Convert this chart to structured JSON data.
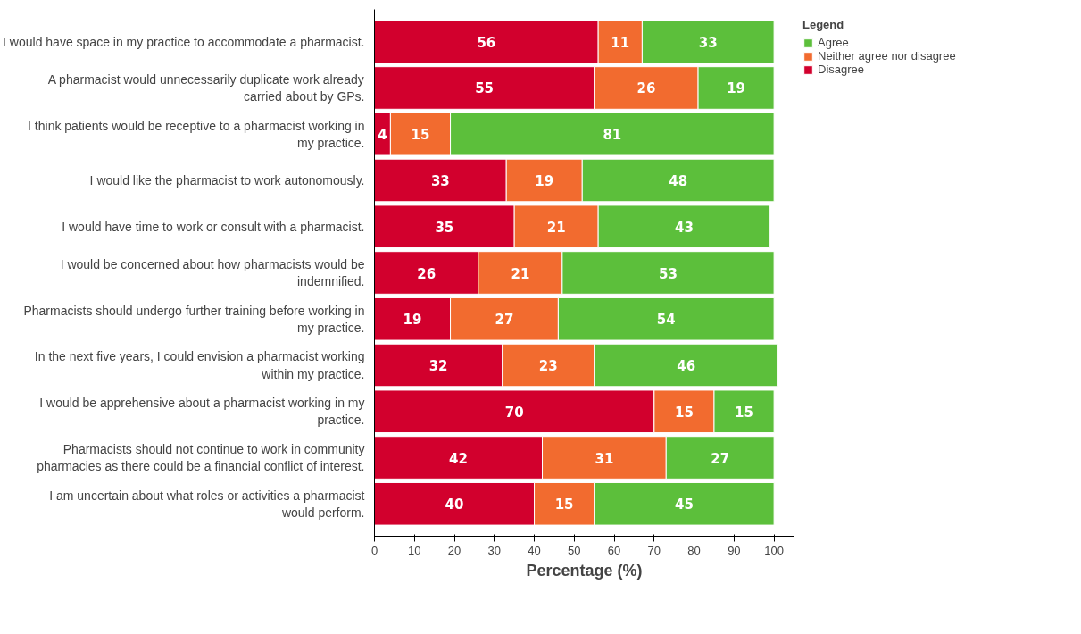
{
  "chart_data": {
    "type": "bar",
    "orientation": "horizontal",
    "stacked": true,
    "categories": [
      "I would have space in my practice to accommodate a pharmacist.",
      "A pharmacist would unnecessarily duplicate work already carried about by GPs.",
      "I think patients would be receptive to a pharmacist working in my practice.",
      "I would like the pharmacist to work autonomously.",
      "I would have time to work or consult with a pharmacist.",
      "I would be concerned about how pharmacists would be indemnified.",
      "Pharmacists should undergo further training before working in my practice.",
      "In the next five years, I could envision a pharmacist working within my practice.",
      "I would be apprehensive about a pharmacist working in my practice.",
      "Pharmacists should not continue to work in community pharmacies as there could be a financial conflict of interest.",
      "I am uncertain about what roles or activities a pharmacist would perform."
    ],
    "series": [
      {
        "name": "Disagree",
        "color": "#d2002d",
        "values": [
          56,
          55,
          4,
          33,
          35,
          26,
          19,
          32,
          70,
          42,
          40
        ]
      },
      {
        "name": "Neither agree nor disagree",
        "color": "#f26b2f",
        "values": [
          11,
          26,
          15,
          19,
          21,
          21,
          27,
          23,
          15,
          31,
          15
        ]
      },
      {
        "name": "Agree",
        "color": "#5cbf3b",
        "values": [
          33,
          19,
          81,
          48,
          43,
          53,
          54,
          46,
          15,
          27,
          45
        ]
      }
    ],
    "xlim": [
      0,
      105
    ],
    "xticks": [
      0,
      10,
      20,
      30,
      40,
      50,
      60,
      70,
      80,
      90,
      100
    ],
    "xlabel": "Percentage (%)",
    "legend_title": "Legend",
    "legend": "top right",
    "data_labels": true,
    "grid": false
  }
}
